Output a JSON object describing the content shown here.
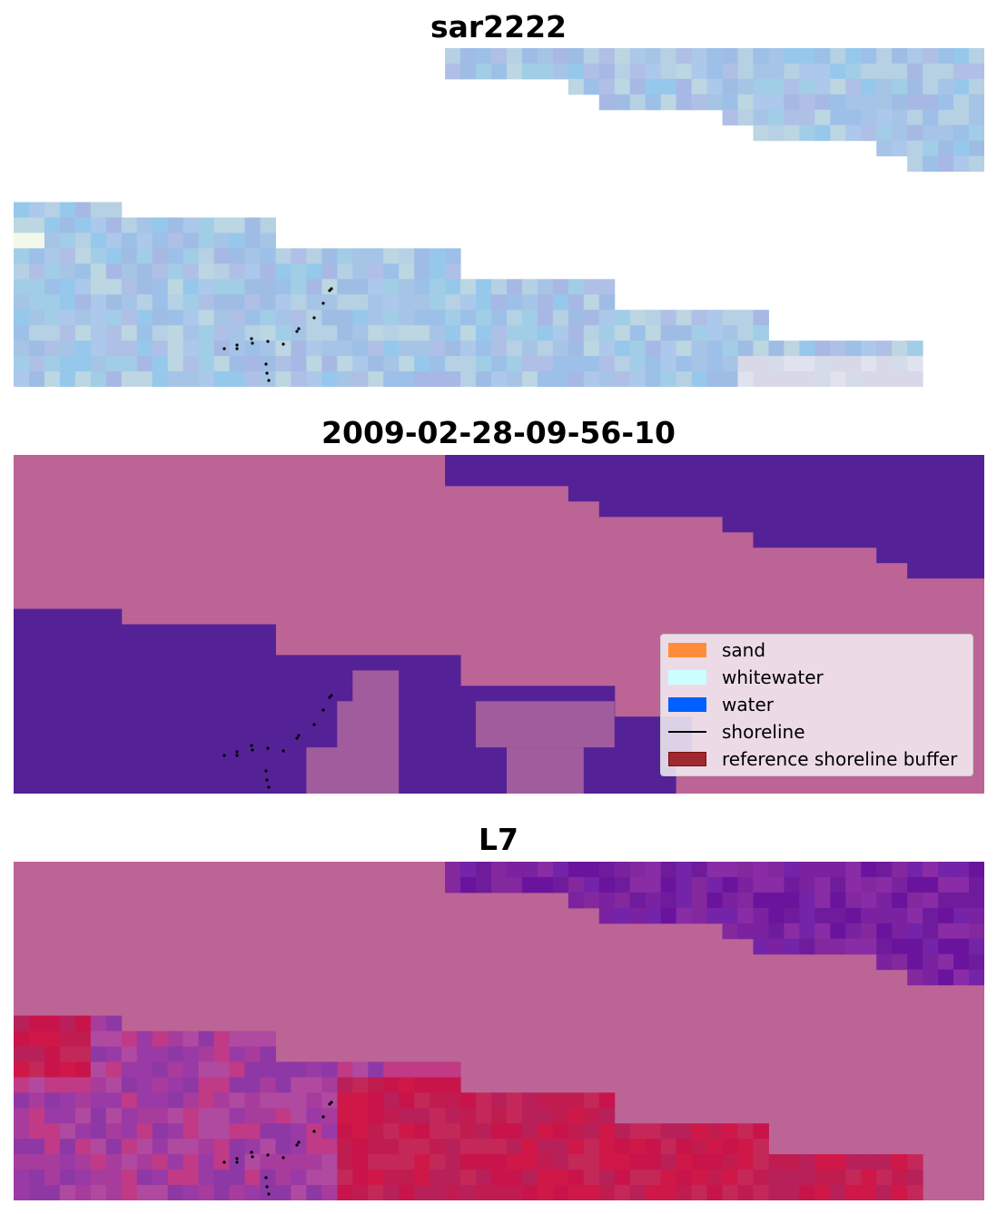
{
  "panels": [
    {
      "title": "sar2222"
    },
    {
      "title": "2009-02-28-09-56-10"
    },
    {
      "title": "L7"
    }
  ],
  "legend": {
    "items": [
      {
        "label": "sand",
        "kind": "patch",
        "color": "#ff8c3a"
      },
      {
        "label": "whitewater",
        "kind": "patch",
        "color": "#ccffff"
      },
      {
        "label": "water",
        "kind": "patch",
        "color": "#0060ff"
      },
      {
        "label": "shoreline",
        "kind": "line",
        "color": "#000000"
      },
      {
        "label": "reference shoreline buffer",
        "kind": "patch",
        "color": "#a0282f"
      }
    ]
  },
  "colors": {
    "land": "#bc6496",
    "water_class": "#542296",
    "rgb_base": "#a6c4e6",
    "index_water": "#7a22a0",
    "index_sand": "#c8144a"
  }
}
